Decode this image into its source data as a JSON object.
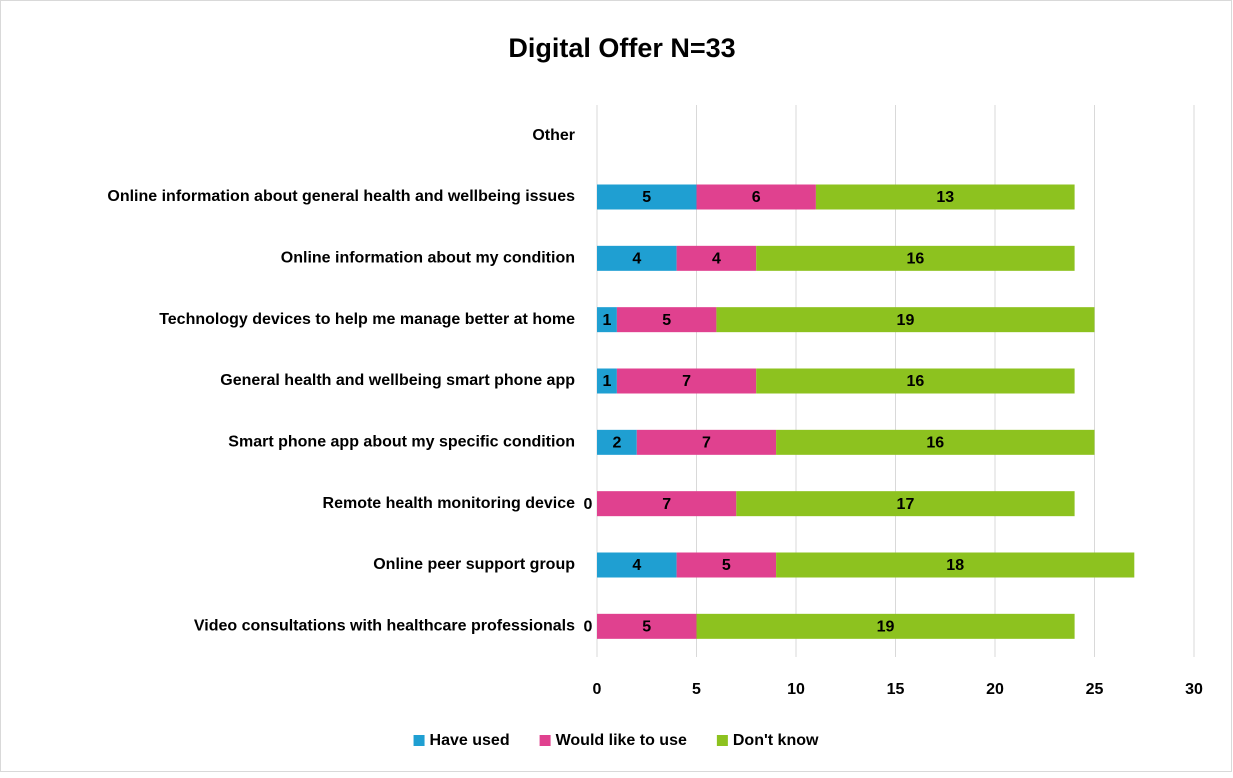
{
  "chart_data": {
    "type": "stacked-barh",
    "title": "Digital Offer N=33",
    "categories": [
      "Other",
      "Online information about general health and wellbeing issues",
      "Online information about my condition",
      "Technology devices to help me manage better at home",
      "General health and wellbeing smart phone app",
      "Smart phone app about my specific condition",
      "Remote health monitoring device",
      "Online peer support group",
      "Video consultations with healthcare professionals"
    ],
    "series": [
      {
        "name": "Have used",
        "color": "#1f9fd2",
        "values": [
          null,
          5,
          4,
          1,
          1,
          2,
          0,
          4,
          0
        ]
      },
      {
        "name": "Would like to use",
        "color": "#e0418f",
        "values": [
          null,
          6,
          4,
          5,
          7,
          7,
          7,
          5,
          5
        ]
      },
      {
        "name": "Don't know",
        "color": "#8dc21f",
        "values": [
          null,
          13,
          16,
          19,
          16,
          16,
          17,
          18,
          19
        ]
      }
    ],
    "xlim": [
      0,
      30
    ],
    "xticks": [
      0,
      5,
      10,
      15,
      20,
      25,
      30
    ],
    "grid": true,
    "legend": "bottom"
  }
}
